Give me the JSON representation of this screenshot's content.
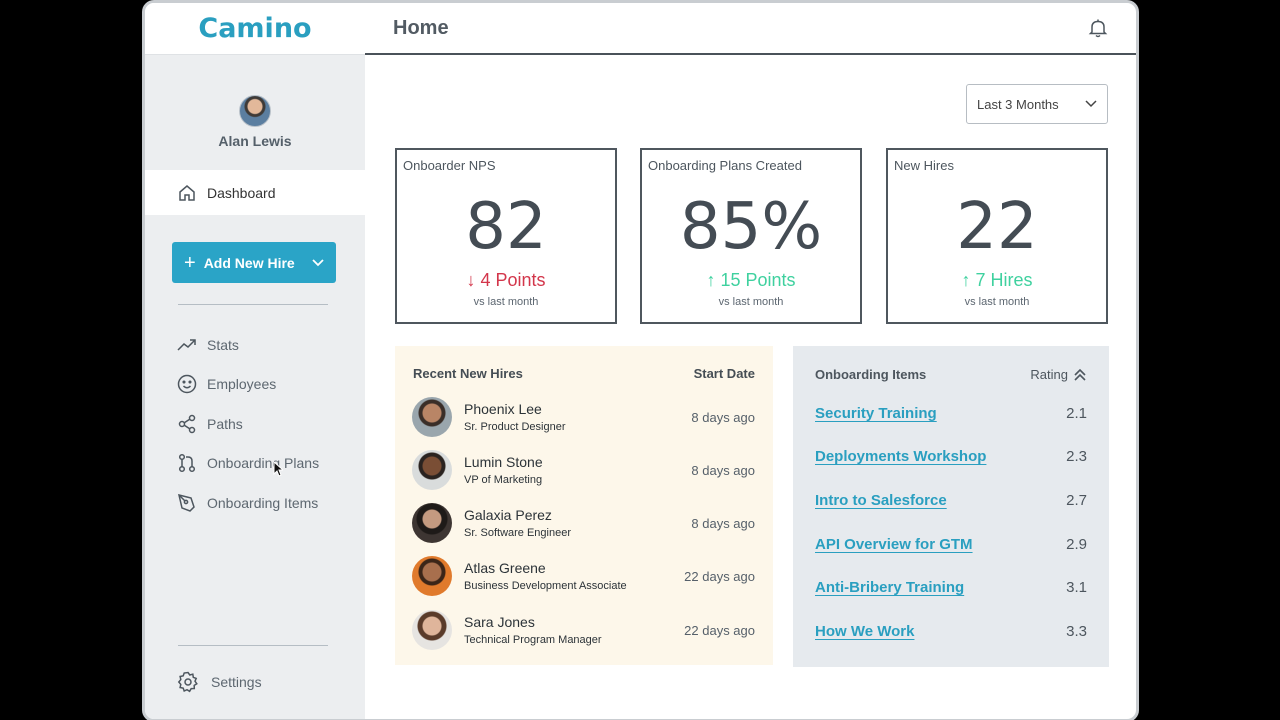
{
  "app": {
    "logo": "Camino"
  },
  "user": {
    "name": "Alan Lewis"
  },
  "nav": {
    "dashboard": "Dashboard",
    "add_new_hire": "Add New Hire",
    "items": [
      {
        "label": "Stats",
        "icon": "trend-icon"
      },
      {
        "label": "Employees",
        "icon": "smiley-icon"
      },
      {
        "label": "Paths",
        "icon": "share-icon"
      },
      {
        "label": "Onboarding Plans",
        "icon": "pull-request-icon"
      },
      {
        "label": "Onboarding Items",
        "icon": "pen-tool-icon"
      }
    ],
    "settings": "Settings"
  },
  "header": {
    "title": "Home"
  },
  "filter": {
    "selected": "Last 3 Months"
  },
  "stats": [
    {
      "label": "Onboarder NPS",
      "value": "82",
      "delta": "4 Points",
      "direction": "down",
      "sub": "vs last month"
    },
    {
      "label": "Onboarding Plans Created",
      "value": "85%",
      "delta": "15 Points",
      "direction": "up",
      "sub": "vs last month"
    },
    {
      "label": "New Hires",
      "value": "22",
      "delta": "7 Hires",
      "direction": "up",
      "sub": "vs last month"
    }
  ],
  "recent_hires": {
    "title": "Recent New Hires",
    "date_header": "Start Date",
    "rows": [
      {
        "name": "Phoenix Lee",
        "role": "Sr. Product Designer",
        "date": "8 days ago"
      },
      {
        "name": "Lumin Stone",
        "role": "VP of Marketing",
        "date": "8 days ago"
      },
      {
        "name": "Galaxia Perez",
        "role": "Sr. Software Engineer",
        "date": "8 days ago"
      },
      {
        "name": "Atlas Greene",
        "role": "Business Development Associate",
        "date": "22 days ago"
      },
      {
        "name": "Sara Jones",
        "role": "Technical Program Manager",
        "date": "22 days ago"
      }
    ]
  },
  "onboarding_items": {
    "title": "Onboarding Items",
    "rating_header": "Rating",
    "rows": [
      {
        "name": "Security Training",
        "rating": "2.1"
      },
      {
        "name": "Deployments Workshop",
        "rating": "2.3"
      },
      {
        "name": "Intro to Salesforce",
        "rating": "2.7"
      },
      {
        "name": "API Overview for GTM",
        "rating": "2.9"
      },
      {
        "name": "Anti-Bribery Training",
        "rating": "3.1"
      },
      {
        "name": "How We Work",
        "rating": "3.3"
      }
    ]
  },
  "colors": {
    "accent": "#2aa4c7",
    "down": "#d3364b",
    "up": "#3fd19f"
  }
}
